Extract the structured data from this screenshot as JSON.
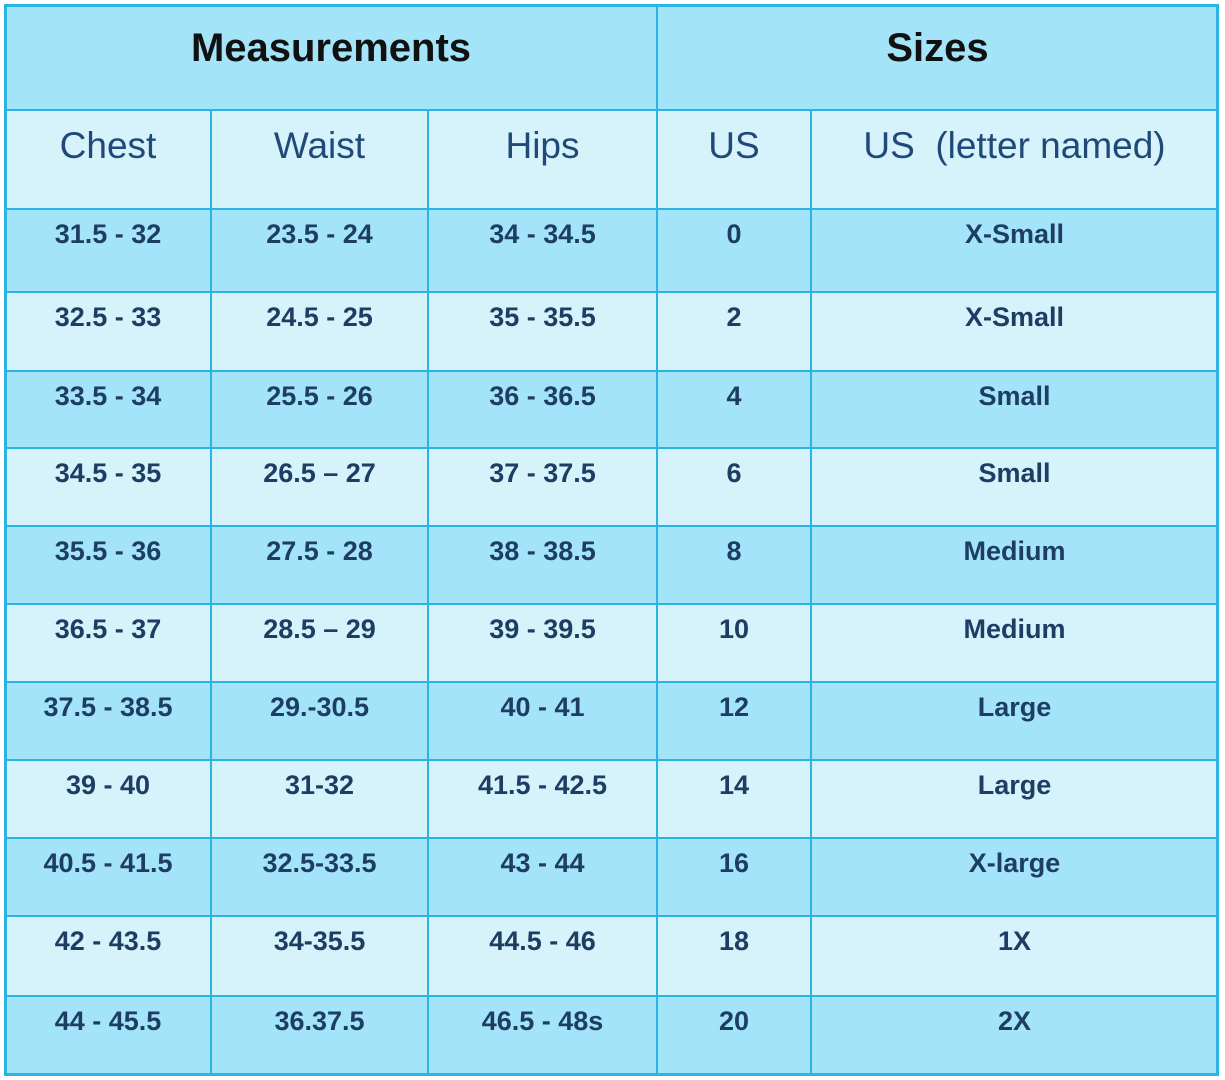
{
  "table": {
    "groups": [
      "Measurements",
      "Sizes"
    ],
    "columns": [
      "Chest",
      "Waist",
      "Hips",
      "US",
      "US  (letter named)"
    ],
    "rows": [
      [
        "31.5 - 32",
        "23.5 - 24",
        "34 - 34.5",
        "0",
        "X-Small"
      ],
      [
        "32.5 - 33",
        "24.5 - 25",
        "35 - 35.5",
        "2",
        "X-Small"
      ],
      [
        "33.5 - 34",
        "25.5 - 26",
        "36 - 36.5",
        "4",
        "Small"
      ],
      [
        "34.5 - 35",
        "26.5 – 27",
        "37 - 37.5",
        "6",
        "Small"
      ],
      [
        "35.5 - 36",
        "27.5 - 28",
        "38 - 38.5",
        "8",
        "Medium"
      ],
      [
        "36.5 - 37",
        "28.5 – 29",
        "39 - 39.5",
        "10",
        "Medium"
      ],
      [
        "37.5 - 38.5",
        "29.-30.5",
        "40 - 41",
        "12",
        "Large"
      ],
      [
        "39 - 40",
        "31-32",
        "41.5 - 42.5",
        "14",
        "Large"
      ],
      [
        "40.5 - 41.5",
        "32.5-33.5",
        "43 - 44",
        "16",
        "X-large"
      ],
      [
        "42 - 43.5",
        "34-35.5",
        "44.5 - 46",
        "18",
        "1X"
      ],
      [
        "44 - 45.5",
        "36.37.5",
        "46.5 - 48s",
        "20",
        "2X"
      ]
    ]
  }
}
